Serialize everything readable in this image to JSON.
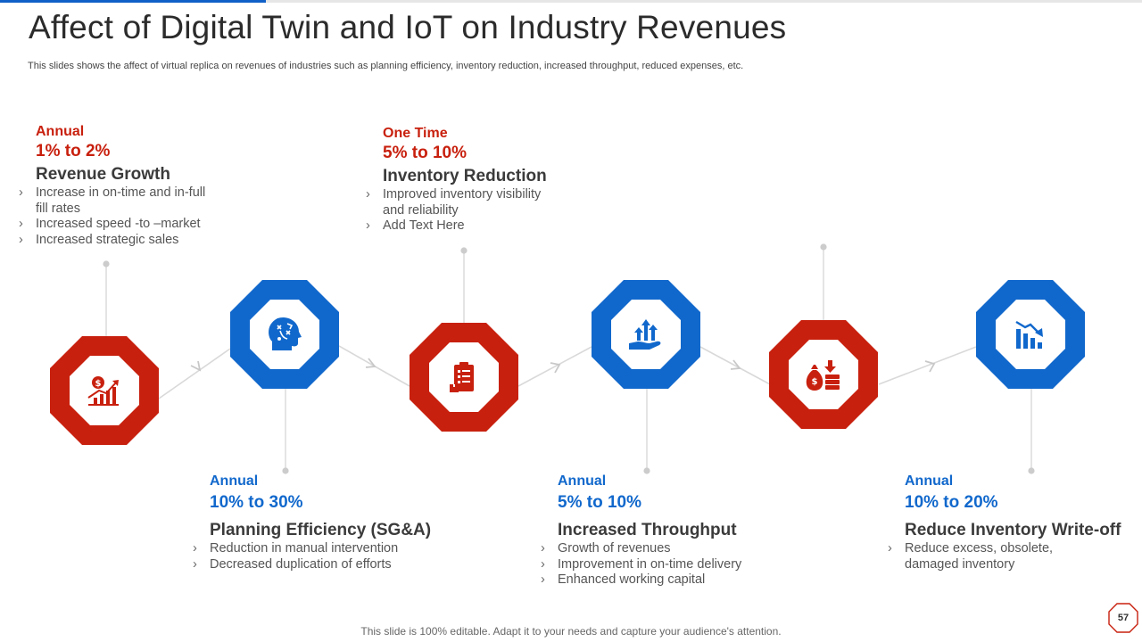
{
  "page": {
    "title": "Affect of Digital Twin and IoT on Industry Revenues",
    "subtitle": "This slides shows the affect of virtual replica on revenues of industries such as planning efficiency, inventory reduction, increased throughput, reduced expenses, etc.",
    "footer": "This slide is 100% editable. Adapt it to your needs and capture your audience's attention.",
    "page_number": "57"
  },
  "colors": {
    "red": "#c8200e",
    "blue": "#1168cc",
    "connector": "#d0d0d0"
  },
  "stages": [
    {
      "frequency": "Annual",
      "range": "1% to 2%",
      "heading": "Revenue Growth",
      "bullets": [
        "Increase in on-time and in-full fill rates",
        "Increased speed -to –market",
        "Increased strategic sales"
      ],
      "icon": "dollar-growth-chart-icon",
      "color": "red"
    },
    {
      "frequency": "Annual",
      "range": "10% to 30%",
      "heading": "Planning Efficiency (SG&A)",
      "bullets": [
        "Reduction in manual intervention",
        "Decreased duplication of efforts"
      ],
      "icon": "strategy-head-icon",
      "color": "blue"
    },
    {
      "frequency": "One Time",
      "range": "5% to 10%",
      "heading": "Inventory Reduction",
      "bullets": [
        "Improved inventory visibility and reliability",
        "Add Text Here"
      ],
      "icon": "inventory-clipboard-icon",
      "color": "red"
    },
    {
      "frequency": "Annual",
      "range": "5% to 10%",
      "heading": "Increased Throughput",
      "bullets": [
        "Growth of revenues",
        "Improvement in on-time delivery",
        "Enhanced working capital"
      ],
      "icon": "growth-arrows-hand-icon",
      "color": "blue"
    },
    {
      "frequency": "",
      "range": "",
      "heading": "",
      "bullets": [],
      "icon": "money-bag-coins-icon",
      "color": "red"
    },
    {
      "frequency": "Annual",
      "range": "10% to 20%",
      "heading": "Reduce Inventory Write-off",
      "bullets": [
        "Reduce excess, obsolete, damaged inventory"
      ],
      "icon": "declining-bar-chart-icon",
      "color": "blue"
    }
  ]
}
